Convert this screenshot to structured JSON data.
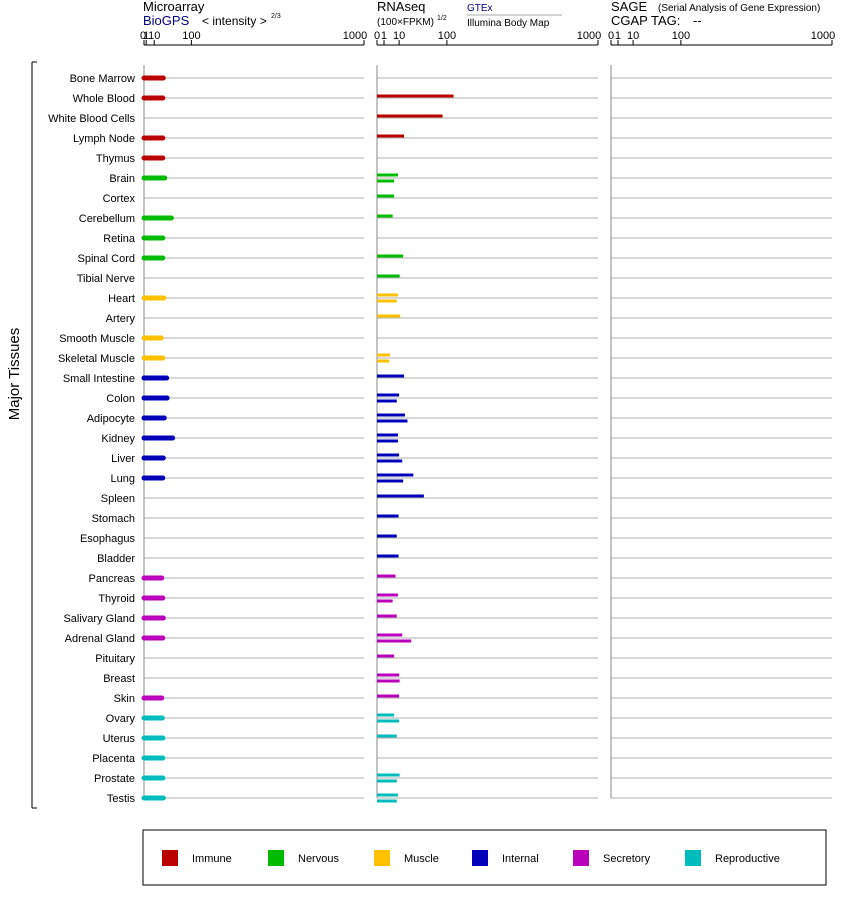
{
  "colors": {
    "Immune": "#bb0000",
    "Nervous": "#00bb00",
    "Muscle": "#ffc000",
    "Internal": "#0000bb",
    "Secretory": "#bb00bb",
    "Reproductive": "#00bbbb"
  },
  "chart_data": [
    {
      "type": "bar",
      "panel": "microarray",
      "title": "Microarray",
      "source": "BioGPS",
      "scale_label": "< intensity >",
      "scale_exponent": "2/3",
      "axis_ticks": [
        "0",
        "1",
        "10",
        "100",
        "1000"
      ],
      "xlim": [
        0,
        1000
      ],
      "ylabel": "Major Tissues",
      "categories": [
        "Bone Marrow",
        "Whole Blood",
        "White Blood Cells",
        "Lymph Node",
        "Thymus",
        "Brain",
        "Cortex",
        "Cerebellum",
        "Retina",
        "Spinal Cord",
        "Tibial Nerve",
        "Heart",
        "Artery",
        "Smooth Muscle",
        "Skeletal Muscle",
        "Small Intestine",
        "Colon",
        "Adipocyte",
        "Kidney",
        "Liver",
        "Lung",
        "Spleen",
        "Stomach",
        "Esophagus",
        "Bladder",
        "Pancreas",
        "Thyroid",
        "Salivary Gland",
        "Adrenal Gland",
        "Pituitary",
        "Breast",
        "Skin",
        "Ovary",
        "Uterus",
        "Placenta",
        "Prostate",
        "Testis"
      ],
      "groups": [
        "Immune",
        "Immune",
        "Immune",
        "Immune",
        "Immune",
        "Nervous",
        "Nervous",
        "Nervous",
        "Nervous",
        "Nervous",
        "Nervous",
        "Muscle",
        "Muscle",
        "Muscle",
        "Muscle",
        "Internal",
        "Internal",
        "Internal",
        "Internal",
        "Internal",
        "Internal",
        "Internal",
        "Internal",
        "Internal",
        "Internal",
        "Secretory",
        "Secretory",
        "Secretory",
        "Secretory",
        "Secretory",
        "Secretory",
        "Secretory",
        "Reproductive",
        "Reproductive",
        "Reproductive",
        "Reproductive",
        "Reproductive"
      ],
      "values": [
        26,
        25,
        null,
        25,
        25,
        29,
        null,
        44,
        25,
        25,
        null,
        27,
        null,
        22,
        25,
        33,
        34,
        28,
        47,
        26,
        25,
        null,
        null,
        null,
        null,
        23,
        25,
        26,
        25,
        null,
        null,
        23,
        24,
        25,
        25,
        25,
        26
      ]
    },
    {
      "type": "bar",
      "panel": "rnaseq",
      "title": "RNAseq",
      "scale_label": "(100×FPKM)",
      "scale_exponent": "1/2",
      "sources": [
        "GTEx",
        "Illumina Body Map"
      ],
      "axis_ticks": [
        "0",
        "1",
        "10",
        "100",
        "1000"
      ],
      "xlim": [
        0,
        1000
      ],
      "categories": [
        "Bone Marrow",
        "Whole Blood",
        "White Blood Cells",
        "Lymph Node",
        "Thymus",
        "Brain",
        "Cortex",
        "Cerebellum",
        "Retina",
        "Spinal Cord",
        "Tibial Nerve",
        "Heart",
        "Artery",
        "Smooth Muscle",
        "Skeletal Muscle",
        "Small Intestine",
        "Colon",
        "Adipocyte",
        "Kidney",
        "Liver",
        "Lung",
        "Spleen",
        "Stomach",
        "Esophagus",
        "Bladder",
        "Pancreas",
        "Thyroid",
        "Salivary Gland",
        "Adrenal Gland",
        "Pituitary",
        "Breast",
        "Skin",
        "Ovary",
        "Uterus",
        "Placenta",
        "Prostate",
        "Testis"
      ],
      "series": [
        {
          "name": "GTEx",
          "values": [
            null,
            120,
            88,
            15,
            null,
            9,
            6,
            5,
            null,
            14,
            10.5,
            9,
            11,
            null,
            3.5,
            15,
            10,
            16,
            9,
            10,
            27,
            45,
            9.5,
            8,
            9.5,
            7,
            9,
            8,
            13,
            6,
            10,
            10,
            6,
            8,
            null,
            10.5,
            9
          ]
        },
        {
          "name": "Illumina Body Map",
          "values": [
            null,
            null,
            null,
            null,
            null,
            6,
            null,
            null,
            null,
            null,
            null,
            8,
            null,
            null,
            3,
            null,
            8,
            19,
            9,
            13,
            14,
            null,
            null,
            null,
            null,
            null,
            5,
            null,
            24,
            null,
            10.5,
            null,
            10,
            null,
            null,
            8,
            8
          ]
        }
      ]
    },
    {
      "type": "bar",
      "panel": "sage",
      "title": "SAGE",
      "subtitle": "(Serial Analysis of Gene Expression)",
      "tag_label": "CGAP TAG:",
      "tag_value": "--",
      "axis_ticks": [
        "0",
        "1",
        "10",
        "100",
        "1000"
      ],
      "xlim": [
        0,
        1000
      ],
      "values": []
    }
  ],
  "legend": [
    "Immune",
    "Nervous",
    "Muscle",
    "Internal",
    "Secretory",
    "Reproductive"
  ]
}
